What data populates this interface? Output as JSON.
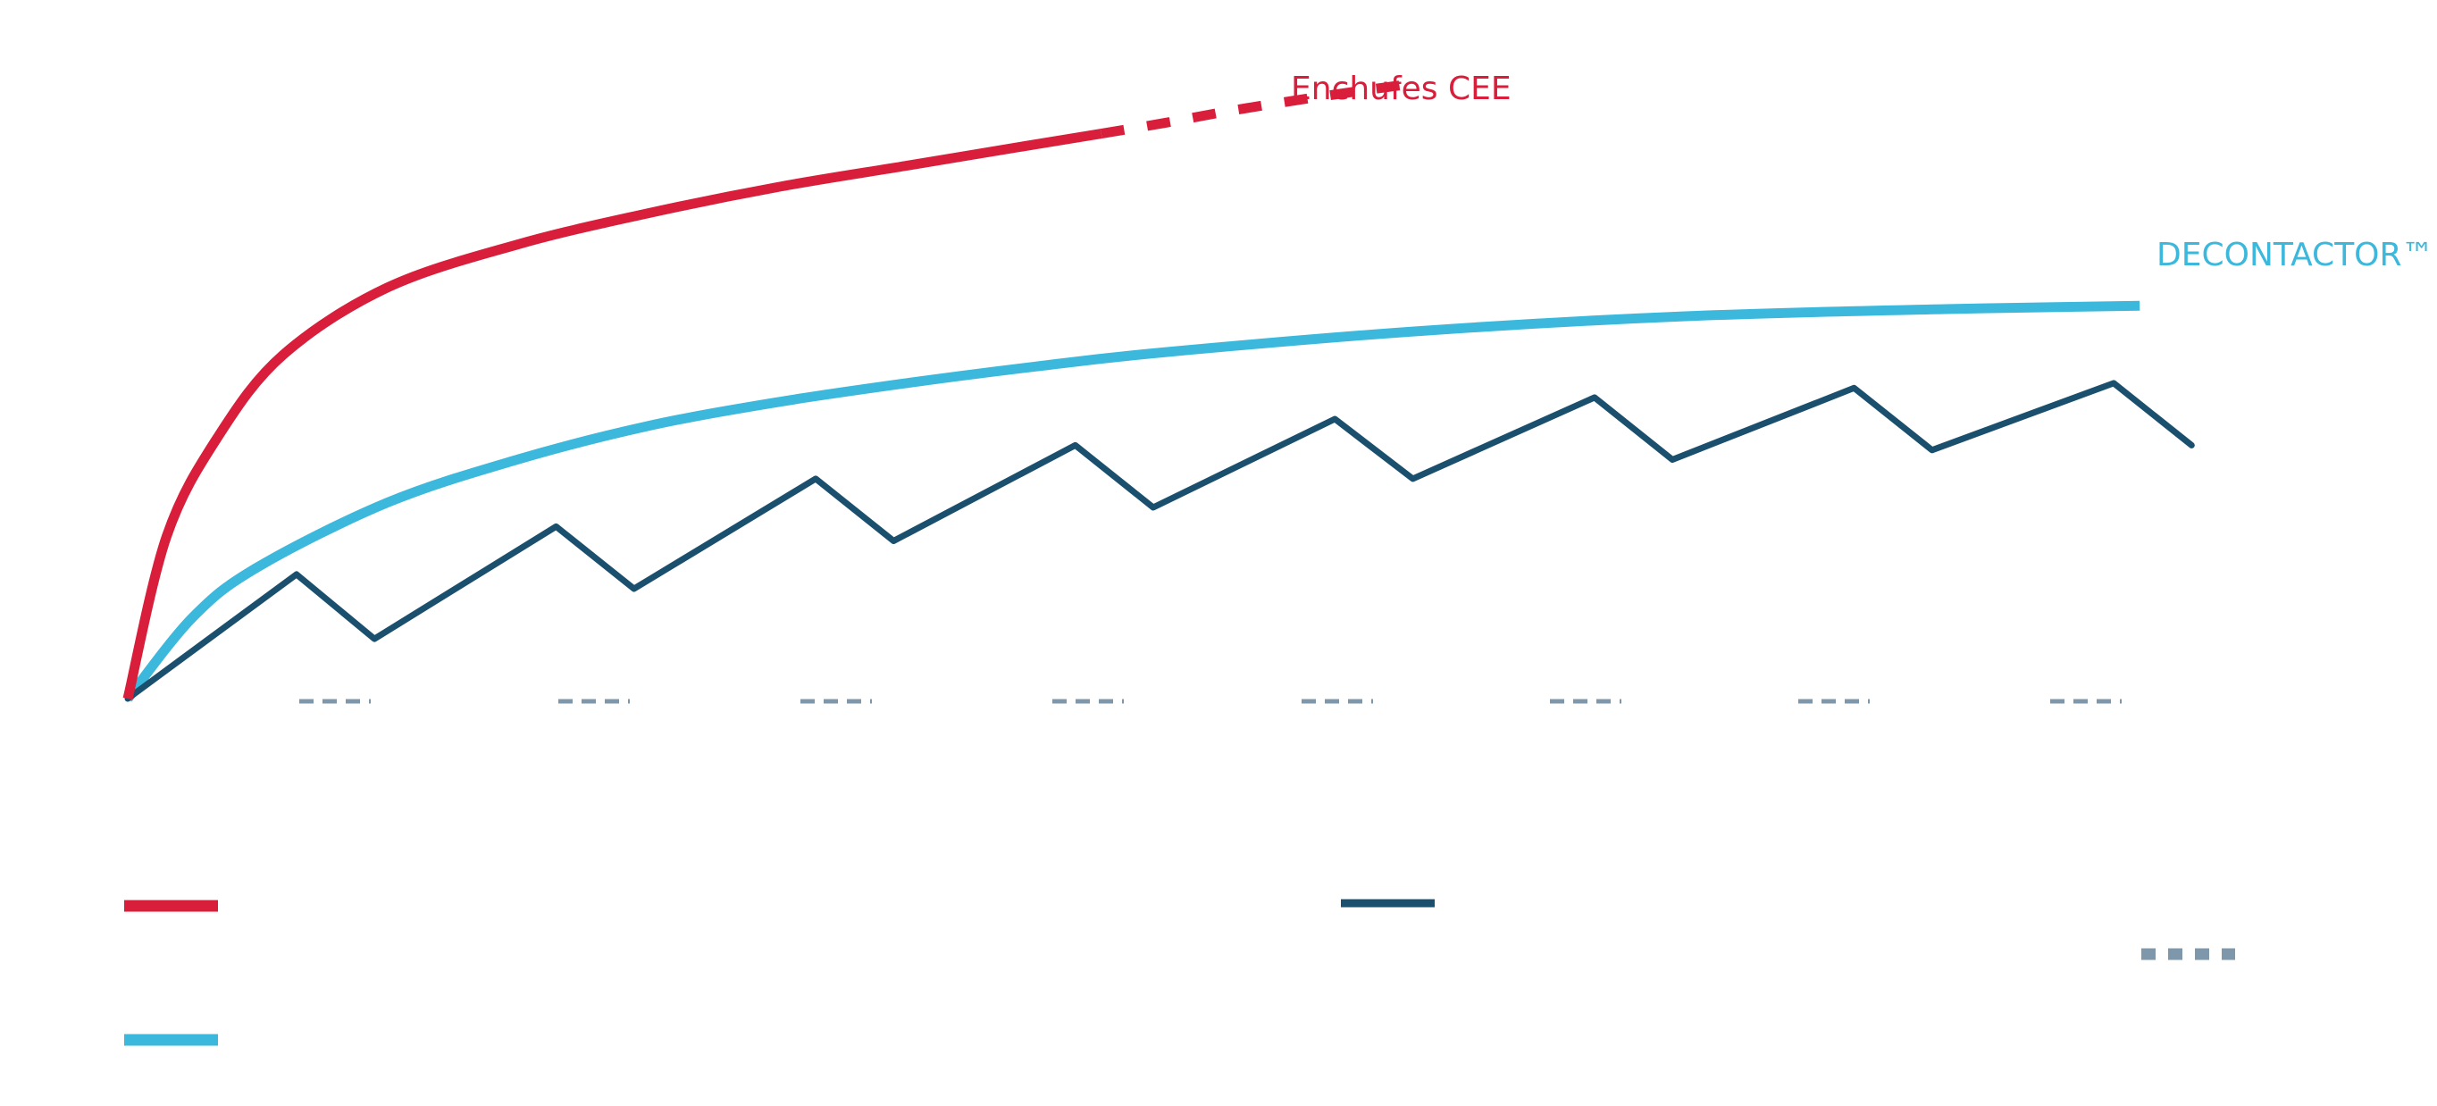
{
  "colors": {
    "enchufes": "#d81e3a",
    "decontactor": "#3bb8dc",
    "sawtooth": "#1b4f6e",
    "dashed": "#7f97ab",
    "background": "#ffffff"
  },
  "chart_data": {
    "type": "line",
    "title": "",
    "xlabel": "",
    "ylabel": "",
    "grid": false,
    "x_markers": [
      1,
      2,
      3,
      4,
      5,
      6,
      7,
      8
    ],
    "series": [
      {
        "key": "enchufes",
        "name": "Enchufes CEE",
        "color": "#d81e3a",
        "extrapolated_after_x": 7.5,
        "points": [
          [
            0,
            0
          ],
          [
            0.3,
            3.4
          ],
          [
            0.7,
            5.5
          ],
          [
            1.2,
            7.2
          ],
          [
            2,
            8.6
          ],
          [
            3,
            9.5
          ],
          [
            4,
            10.15
          ],
          [
            5,
            10.7
          ],
          [
            6,
            11.15
          ],
          [
            7,
            11.6
          ],
          [
            7.5,
            11.82
          ],
          [
            8,
            12.05
          ],
          [
            8.5,
            12.3
          ],
          [
            9.2,
            12.6
          ],
          [
            9.8,
            12.83
          ]
        ]
      },
      {
        "key": "decontactor",
        "name": "DECONTACTOR™",
        "color": "#3bb8dc",
        "points": [
          [
            0,
            0
          ],
          [
            0.5,
            1.7
          ],
          [
            1,
            2.75
          ],
          [
            2,
            4.1
          ],
          [
            3,
            5.0
          ],
          [
            4,
            5.7
          ],
          [
            5,
            6.2
          ],
          [
            6,
            6.6
          ],
          [
            7,
            6.95
          ],
          [
            8,
            7.25
          ],
          [
            10,
            7.7
          ],
          [
            12,
            8.0
          ],
          [
            14,
            8.15
          ],
          [
            15.5,
            8.22
          ]
        ]
      },
      {
        "key": "sawtooth",
        "name": "",
        "color": "#1b4f6e",
        "points": [
          [
            0,
            0
          ],
          [
            1.3,
            2.6
          ],
          [
            1.9,
            1.25
          ],
          [
            3.3,
            3.6
          ],
          [
            3.9,
            2.3
          ],
          [
            5.3,
            4.6
          ],
          [
            5.9,
            3.3
          ],
          [
            7.3,
            5.3
          ],
          [
            7.9,
            4.0
          ],
          [
            9.3,
            5.85
          ],
          [
            9.9,
            4.6
          ],
          [
            11.3,
            6.3
          ],
          [
            11.9,
            5.0
          ],
          [
            13.3,
            6.5
          ],
          [
            13.9,
            5.2
          ],
          [
            15.3,
            6.6
          ],
          [
            15.9,
            5.3
          ]
        ]
      }
    ],
    "legend": [
      {
        "series": "enchufes",
        "label": ""
      },
      {
        "series": "decontactor",
        "label": ""
      },
      {
        "series": "sawtooth",
        "label": ""
      },
      {
        "series": "dashed",
        "label": ""
      }
    ]
  }
}
